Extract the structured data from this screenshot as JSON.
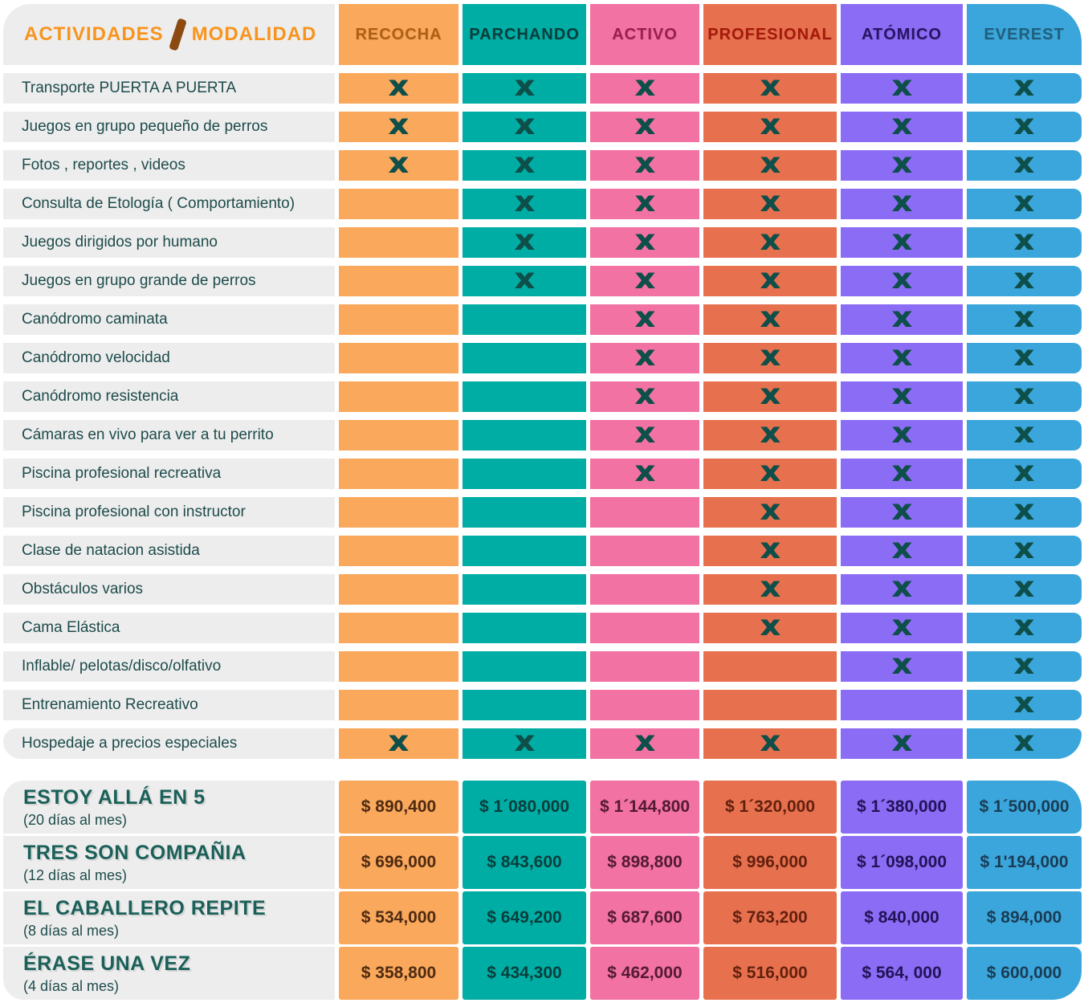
{
  "title": {
    "left": "ACTIVIDADES",
    "right": "MODALIDAD"
  },
  "colors": {
    "page_bg": "#FFFFFF",
    "panel_gray": "#EDEDED",
    "label_text": "#1E4B4B",
    "mark": "#0F4F4A",
    "title_orange": "#F8941D",
    "title_slash": "#8C4A10",
    "plan_name": "#1A6059"
  },
  "chart_data": {
    "type": "table",
    "title": "ACTIVIDADES / MODALIDAD",
    "mark_glyph": "X",
    "columns": [
      {
        "id": "recocha",
        "label": "RECOCHA",
        "bg": "#F9A85C",
        "fg": "#B05F12",
        "price_fg": "#4F2B12"
      },
      {
        "id": "parchando",
        "label": "PARCHANDO",
        "bg": "#00ADA4",
        "fg": "#093E3C",
        "price_fg": "#093E3C"
      },
      {
        "id": "activo",
        "label": "ACTIVO",
        "bg": "#F172A3",
        "fg": "#9C1E4C",
        "price_fg": "#541A33"
      },
      {
        "id": "profesional",
        "label": "PROFESIONAL",
        "bg": "#E7714E",
        "fg": "#A6180B",
        "price_fg": "#63200F"
      },
      {
        "id": "atomico",
        "label": "ATÓMICO",
        "bg": "#8B6CF5",
        "fg": "#271463",
        "price_fg": "#221357"
      },
      {
        "id": "everest",
        "label": "EVEREST",
        "bg": "#3BA6DB",
        "fg": "#20607F",
        "price_fg": "#1A3C55"
      }
    ],
    "activities": [
      {
        "label": "Transporte PUERTA A PUERTA",
        "included": [
          true,
          true,
          true,
          true,
          true,
          true
        ]
      },
      {
        "label": "Juegos en grupo pequeño de perros",
        "included": [
          true,
          true,
          true,
          true,
          true,
          true
        ]
      },
      {
        "label": "Fotos , reportes , videos",
        "included": [
          true,
          true,
          true,
          true,
          true,
          true
        ]
      },
      {
        "label": "Consulta de Etología ( Comportamiento)",
        "included": [
          false,
          true,
          true,
          true,
          true,
          true
        ]
      },
      {
        "label": "Juegos dirigidos por humano",
        "included": [
          false,
          true,
          true,
          true,
          true,
          true
        ]
      },
      {
        "label": "Juegos en grupo grande de perros",
        "included": [
          false,
          true,
          true,
          true,
          true,
          true
        ]
      },
      {
        "label": "Canódromo caminata",
        "included": [
          false,
          false,
          true,
          true,
          true,
          true
        ]
      },
      {
        "label": "Canódromo velocidad",
        "included": [
          false,
          false,
          true,
          true,
          true,
          true
        ]
      },
      {
        "label": "Canódromo resistencia",
        "included": [
          false,
          false,
          true,
          true,
          true,
          true
        ]
      },
      {
        "label": "Cámaras en vivo para ver a tu perrito",
        "included": [
          false,
          false,
          true,
          true,
          true,
          true
        ]
      },
      {
        "label": "Piscina profesional recreativa",
        "included": [
          false,
          false,
          true,
          true,
          true,
          true
        ]
      },
      {
        "label": "Piscina profesional con instructor",
        "included": [
          false,
          false,
          false,
          true,
          true,
          true
        ]
      },
      {
        "label": "Clase de natacion asistida",
        "included": [
          false,
          false,
          false,
          true,
          true,
          true
        ]
      },
      {
        "label": "Obstáculos varios",
        "included": [
          false,
          false,
          false,
          true,
          true,
          true
        ]
      },
      {
        "label": "Cama Elástica",
        "included": [
          false,
          false,
          false,
          true,
          true,
          true
        ]
      },
      {
        "label": "Inflable/ pelotas/disco/olfativo",
        "included": [
          false,
          false,
          false,
          false,
          true,
          true
        ]
      },
      {
        "label": "Entrenamiento Recreativo",
        "included": [
          false,
          false,
          false,
          false,
          false,
          true
        ]
      },
      {
        "label": "Hospedaje a precios especiales",
        "included": [
          true,
          true,
          true,
          true,
          true,
          true
        ]
      }
    ],
    "plans": [
      {
        "name": "ESTOY ALLÁ EN 5",
        "sub": "(20 días al mes)",
        "prices": [
          "$ 890,400",
          "$ 1´080,000",
          "$ 1´144,800",
          "$ 1´320,000",
          "$ 1´380,000",
          "$ 1´500,000"
        ]
      },
      {
        "name": "TRES SON COMPAÑIA",
        "sub": "(12 días al mes)",
        "prices": [
          "$ 696,000",
          "$ 843,600",
          "$ 898,800",
          "$ 996,000",
          "$ 1´098,000",
          "$ 1'194,000"
        ]
      },
      {
        "name": "EL CABALLERO REPITE",
        "sub": "(8 días al mes)",
        "prices": [
          "$ 534,000",
          "$ 649,200",
          "$ 687,600",
          "$ 763,200",
          "$ 840,000",
          "$ 894,000"
        ]
      },
      {
        "name": "ÉRASE UNA VEZ",
        "sub": "(4 días al mes)",
        "prices": [
          "$ 358,800",
          "$ 434,300",
          "$ 462,000",
          "$ 516,000",
          "$ 564, 000",
          "$ 600,000"
        ]
      }
    ]
  }
}
